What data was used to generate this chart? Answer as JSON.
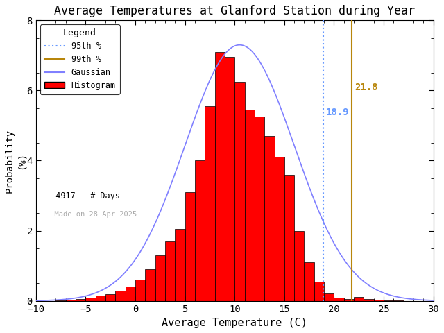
{
  "title": "Average Temperatures at Glanford Station during Year",
  "xlabel": "Average Temperature (C)",
  "ylabel": "Probability\n(%)",
  "xlim": [
    -10,
    30
  ],
  "ylim": [
    0,
    8
  ],
  "xticks": [
    -10,
    -5,
    0,
    5,
    10,
    15,
    20,
    25,
    30
  ],
  "yticks": [
    0,
    2,
    4,
    6,
    8
  ],
  "bin_edges": [
    -9,
    -8,
    -7,
    -6,
    -5,
    -4,
    -3,
    -2,
    -1,
    0,
    1,
    2,
    3,
    4,
    5,
    6,
    7,
    8,
    9,
    10,
    11,
    12,
    13,
    14,
    15,
    16,
    17,
    18,
    19,
    20,
    21,
    22,
    23,
    24,
    25,
    26,
    27
  ],
  "bin_values": [
    0.0,
    0.02,
    0.04,
    0.06,
    0.1,
    0.15,
    0.2,
    0.28,
    0.4,
    0.6,
    0.9,
    1.3,
    1.7,
    2.05,
    3.1,
    4.0,
    5.55,
    7.1,
    6.95,
    6.25,
    5.45,
    5.25,
    4.7,
    4.1,
    3.6,
    2.0,
    1.1,
    0.55,
    0.22,
    0.1,
    0.06,
    0.12,
    0.06,
    0.03,
    0.02,
    0.01
  ],
  "hist_color": "#ff0000",
  "hist_edgecolor": "#000000",
  "gauss_color": "#8080ff",
  "p95_color": "#6699ff",
  "p99_color": "#b8860b",
  "p95_value": 18.9,
  "p99_value": 21.8,
  "gauss_mean": 10.5,
  "gauss_std": 5.5,
  "gauss_peak": 7.3,
  "n_days": 4917,
  "date_str": "Made on 28 Apr 2025",
  "background_color": "#ffffff",
  "p95_label_color": "#6699ff",
  "p99_label_color": "#b8860b"
}
